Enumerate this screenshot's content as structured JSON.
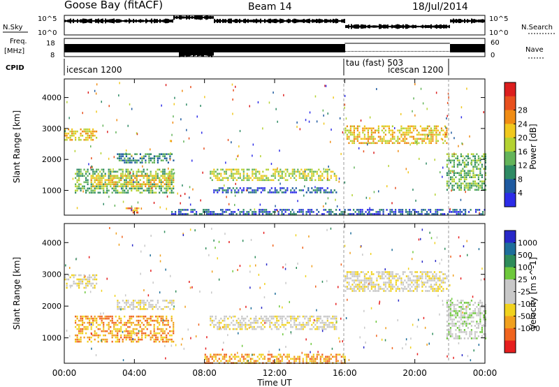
{
  "header": {
    "station": "Goose Bay (fitACF)",
    "beam": "Beam 14",
    "date": "18/Jul/2014"
  },
  "left_labels": {
    "nsky": "N.Sky",
    "nsky_tick_top": "10^5",
    "nsky_tick_bottom": "10^0",
    "freq": "Freq.",
    "freq_unit": "[MHz]",
    "freq_tick_top": "18",
    "freq_tick_bottom": "8",
    "cpid": "CPID"
  },
  "right_labels": {
    "nsky_tick_top": "10^5",
    "nsky_tick_bottom": "10^0",
    "nsearch": "N.Search",
    "nave_tick_top": "60",
    "nave_tick_bottom": "0",
    "nave": "Nave"
  },
  "cpid_segments": [
    {
      "label": "icescan 1200",
      "start": 0,
      "end": 16
    },
    {
      "label": "tau (fast) 503",
      "start": 16,
      "end": 22
    },
    {
      "label": "icescan 1200",
      "start": 16,
      "end": 22
    }
  ],
  "colors": {
    "power": [
      "#2c2ce8",
      "#1e5aa0",
      "#2e8a64",
      "#64b45a",
      "#b4d232",
      "#f0c81e",
      "#f08c14",
      "#e8501e",
      "#dc1e1e"
    ],
    "velocity": [
      "#e61e1e",
      "#f0641e",
      "#f0a01e",
      "#f0d21e",
      "#c8c8c8",
      "#c8c8c8",
      "#6ec83c",
      "#2e8c5a",
      "#1e6e9a",
      "#2828c8"
    ]
  },
  "chart_data": [
    {
      "type": "heatmap",
      "name": "Power",
      "ylabel": "Slant Range [km]",
      "yticks": [
        "1000",
        "2000",
        "3000",
        "4000"
      ],
      "ylim": [
        200,
        4600
      ],
      "xlim": [
        0,
        24
      ],
      "colorbar_label": "Power [dB]",
      "colorbar_ticks": [
        "4",
        "8",
        "12",
        "16",
        "20",
        "24",
        "28"
      ],
      "regions": [
        {
          "t0": 0.0,
          "t1": 1.8,
          "r0": 2600,
          "r1": 3000,
          "level": 5
        },
        {
          "t0": 0.6,
          "t1": 6.2,
          "r0": 900,
          "r1": 1700,
          "level": 3
        },
        {
          "t0": 1.5,
          "t1": 6.2,
          "r0": 1100,
          "r1": 1500,
          "level": 5
        },
        {
          "t0": 3.0,
          "t1": 6.2,
          "r0": 1900,
          "r1": 2200,
          "level": 2
        },
        {
          "t0": 8.3,
          "t1": 15.5,
          "r0": 1300,
          "r1": 1700,
          "level": 4
        },
        {
          "t0": 8.5,
          "t1": 15.5,
          "r0": 900,
          "r1": 1100,
          "level": 1
        },
        {
          "t0": 16.0,
          "t1": 21.8,
          "r0": 2500,
          "r1": 3100,
          "level": 5
        },
        {
          "t0": 21.8,
          "t1": 24.0,
          "r0": 1000,
          "r1": 2200,
          "level": 3
        },
        {
          "t0": 3.5,
          "t1": 4.2,
          "r0": 300,
          "r1": 450,
          "level": 6
        },
        {
          "t0": 6.0,
          "t1": 24.0,
          "r0": 200,
          "r1": 400,
          "level": 1
        }
      ]
    },
    {
      "type": "heatmap",
      "name": "Velocity",
      "ylabel": "Slant Range [km]",
      "yticks": [
        "1000",
        "2000",
        "3000",
        "4000"
      ],
      "ylim": [
        200,
        4600
      ],
      "xlim": [
        0,
        24
      ],
      "xlabel": "Time UT",
      "xticks": [
        "00:00",
        "04:00",
        "08:00",
        "12:00",
        "16:00",
        "20:00",
        "00:00"
      ],
      "colorbar_label": "Velocity [m s^-1]",
      "colorbar_ticks": [
        "1000",
        "500",
        "100",
        "25",
        "-25",
        "-100",
        "-500",
        "-1000"
      ],
      "regions": [
        {
          "t0": 0.0,
          "t1": 1.8,
          "r0": 2600,
          "r1": 3000,
          "level": 4
        },
        {
          "t0": 0.6,
          "t1": 6.2,
          "r0": 900,
          "r1": 1700,
          "level": 2
        },
        {
          "t0": 3.0,
          "t1": 6.2,
          "r0": 1900,
          "r1": 2200,
          "level": 4
        },
        {
          "t0": 8.3,
          "t1": 15.5,
          "r0": 1300,
          "r1": 1700,
          "level": 4
        },
        {
          "t0": 16.0,
          "t1": 21.8,
          "r0": 2500,
          "r1": 3100,
          "level": 4
        },
        {
          "t0": 21.8,
          "t1": 24.0,
          "r0": 1000,
          "r1": 2200,
          "level": 5
        },
        {
          "t0": 8.0,
          "t1": 16.0,
          "r0": 200,
          "r1": 500,
          "level": 2
        }
      ]
    }
  ]
}
